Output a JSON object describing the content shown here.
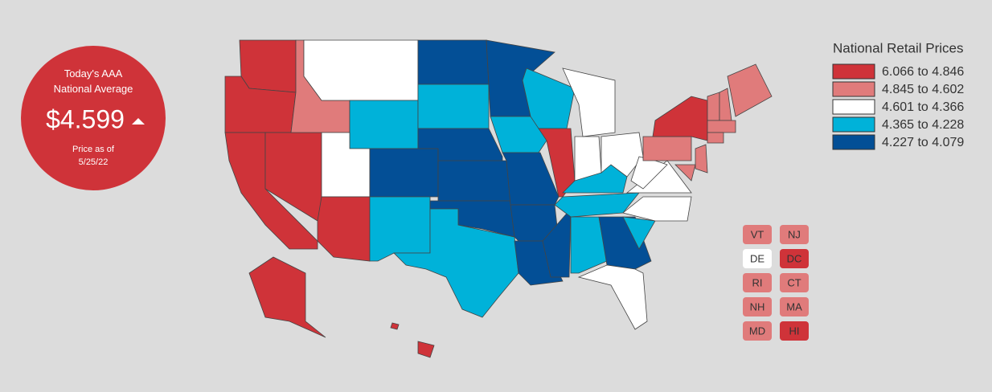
{
  "badge": {
    "heading": "Today's AAA National Average",
    "price": "$4.599",
    "note_label": "Price as of",
    "note_date": "5/25/22"
  },
  "legend": {
    "title": "National Retail Prices",
    "items": [
      {
        "label": "6.066 to 4.846",
        "color": "#cf3339"
      },
      {
        "label": "4.845 to 4.602",
        "color": "#e07b7b"
      },
      {
        "label": "4.601 to 4.366",
        "color": "#ffffff"
      },
      {
        "label": "4.365 to 4.228",
        "color": "#00b2d9"
      },
      {
        "label": "4.227 to 4.079",
        "color": "#034f96"
      }
    ]
  },
  "small_states": [
    {
      "label": "VT",
      "color": "#e07b7b"
    },
    {
      "label": "NJ",
      "color": "#e07b7b"
    },
    {
      "label": "DE",
      "color": "#ffffff"
    },
    {
      "label": "DC",
      "color": "#cf3339"
    },
    {
      "label": "RI",
      "color": "#e07b7b"
    },
    {
      "label": "CT",
      "color": "#e07b7b"
    },
    {
      "label": "NH",
      "color": "#e07b7b"
    },
    {
      "label": "MA",
      "color": "#e07b7b"
    },
    {
      "label": "MD",
      "color": "#e07b7b"
    },
    {
      "label": "HI",
      "color": "#cf3339"
    }
  ]
}
